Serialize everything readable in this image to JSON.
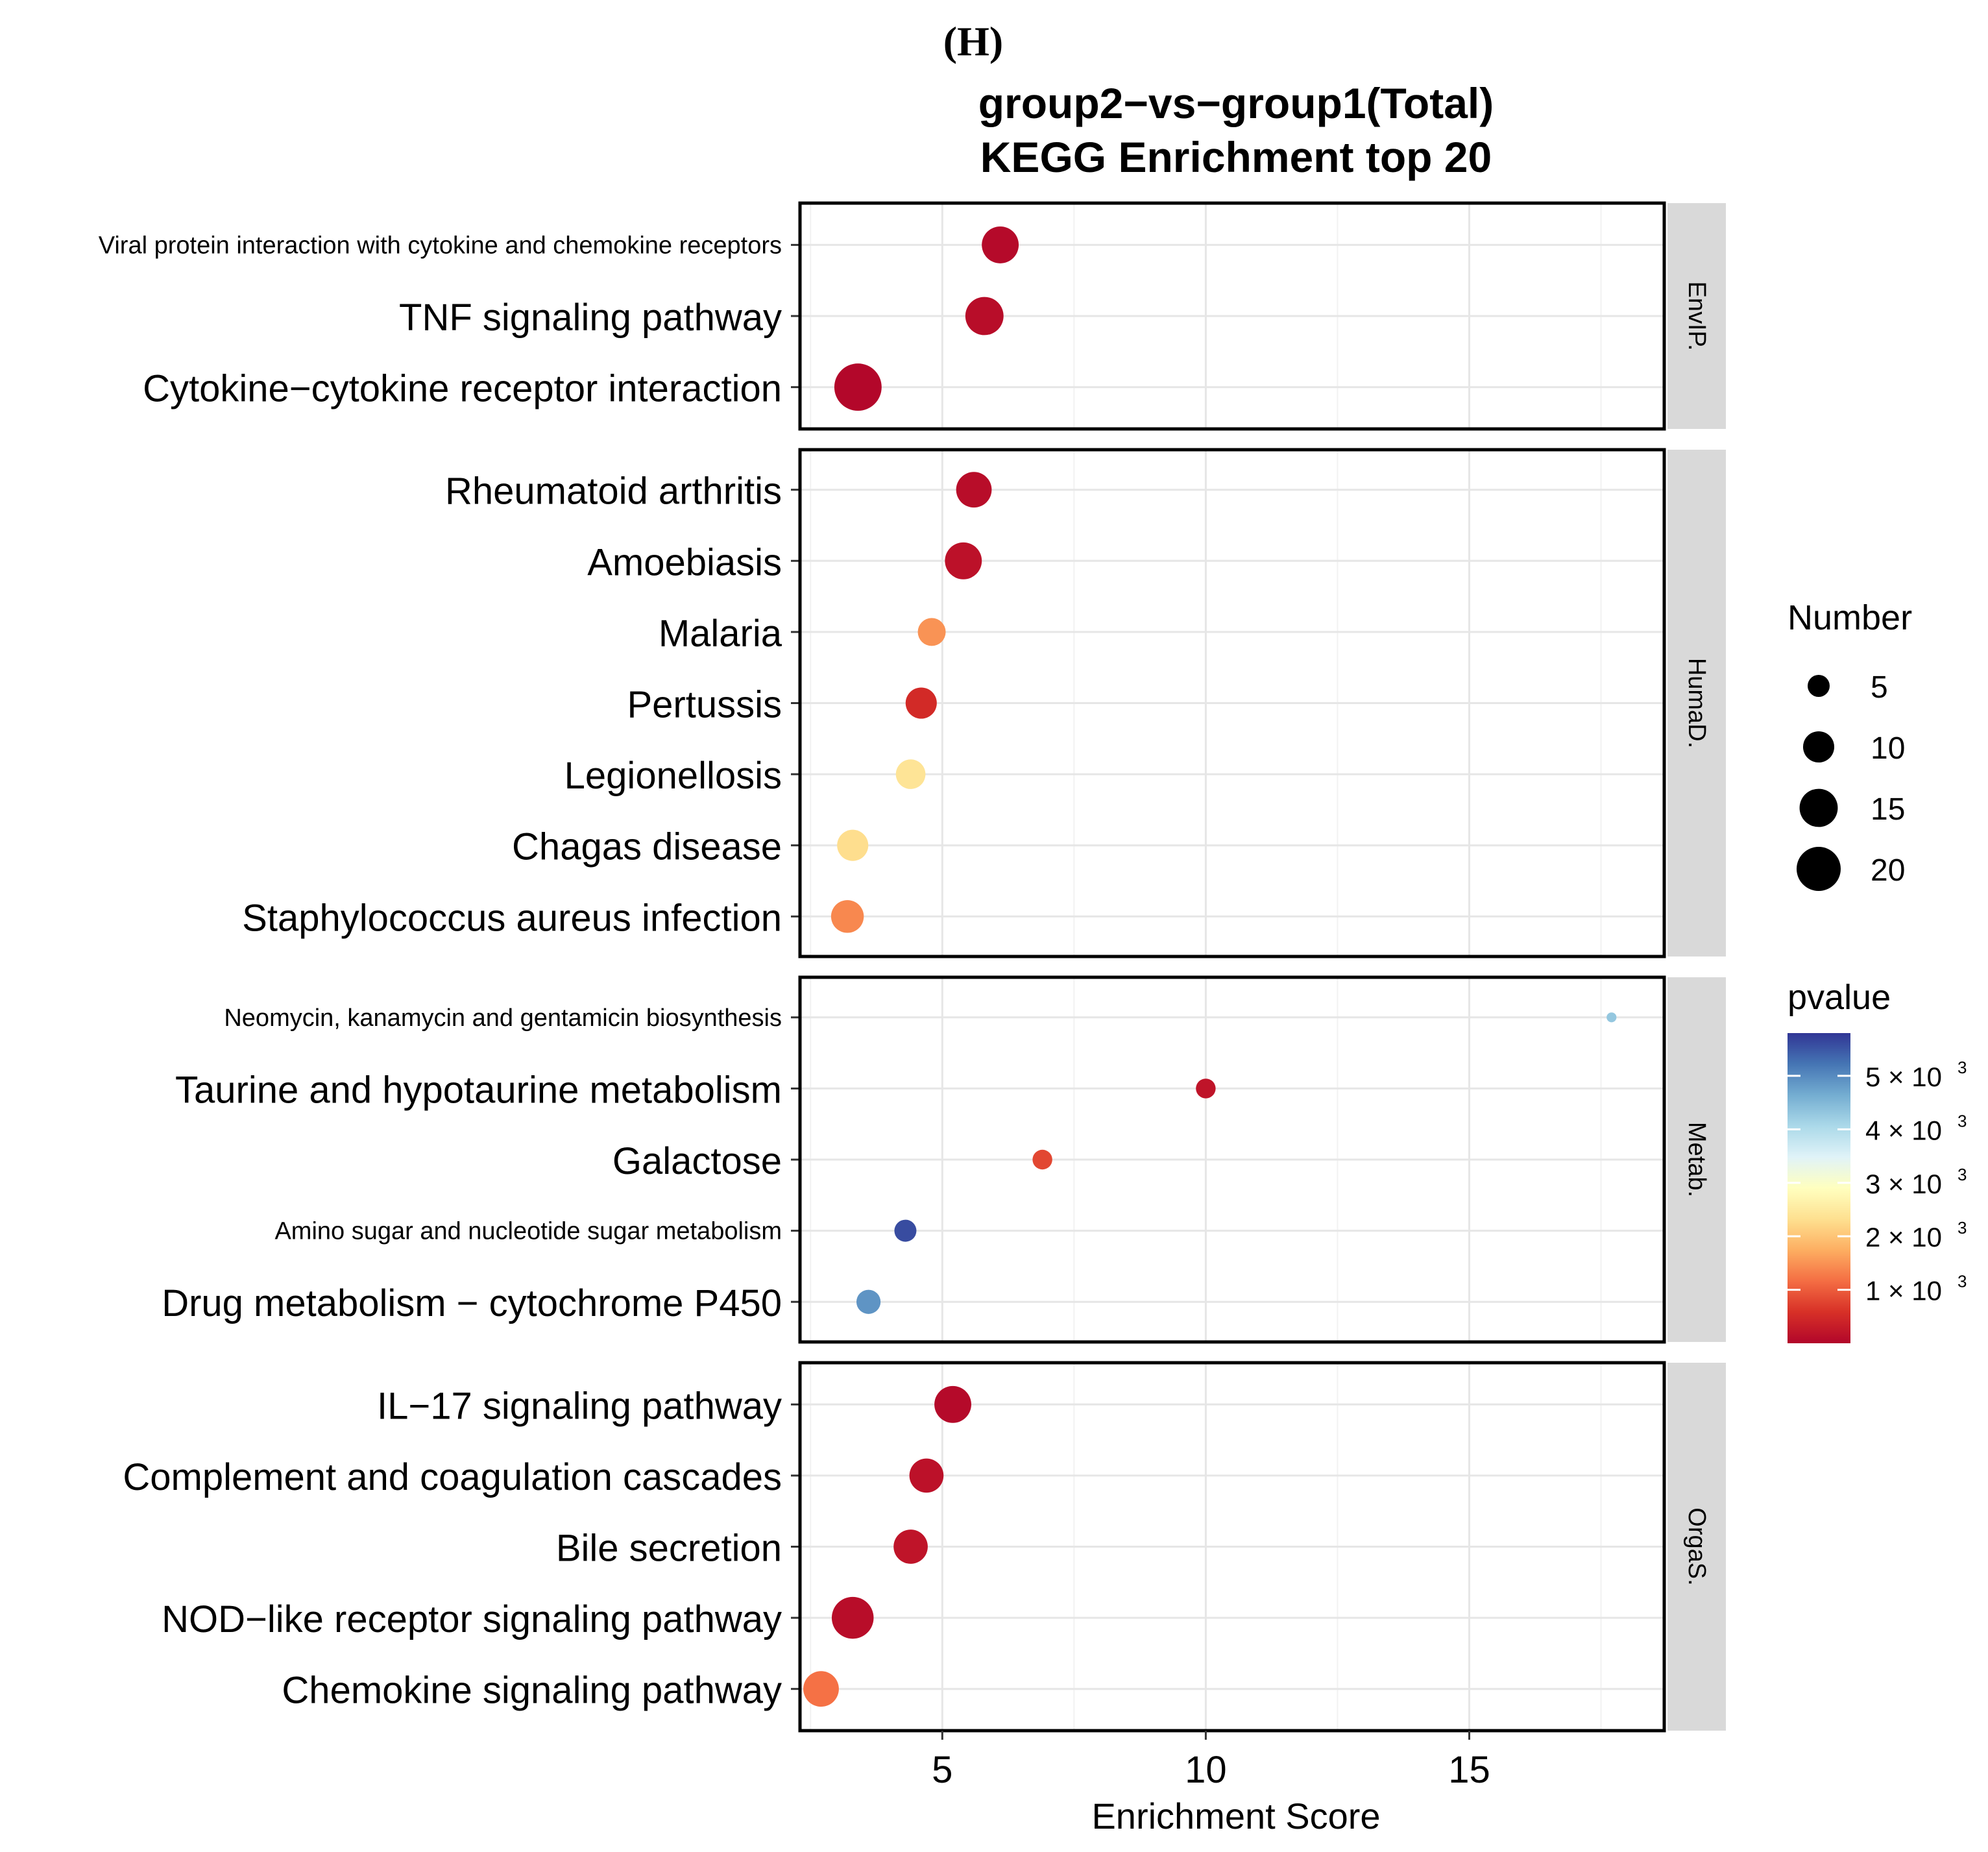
{
  "chart_data": {
    "type": "scatter",
    "panel_letter": "(H)",
    "title_line1": "group2−vs−group1(Total)",
    "title_line2": "KEGG Enrichment top 20",
    "xlabel": "Enrichment Score",
    "xlim": [
      2.3,
      18.7
    ],
    "x_ticks": [
      {
        "value": 5,
        "label": "5"
      },
      {
        "value": 10,
        "label": "10"
      },
      {
        "value": 15,
        "label": "15"
      }
    ],
    "minor_x_ticks": [
      2.5,
      7.5,
      12.5,
      17.5
    ],
    "grid": true,
    "facets": [
      {
        "name": "EnvIP.",
        "pathways": [
          {
            "label": "Viral protein interaction with cytokine and chemokine receptors",
            "label_size": "small",
            "score": 6.1,
            "number": 14,
            "pvalue_e3": 0.05
          },
          {
            "label": "TNF signaling pathway",
            "label_size": "large",
            "score": 5.8,
            "number": 15,
            "pvalue_e3": 0.1
          },
          {
            "label": "Cytokine−cytokine receptor interaction",
            "label_size": "large",
            "score": 3.4,
            "number": 23,
            "pvalue_e3": 0.02
          }
        ]
      },
      {
        "name": "HumaD.",
        "pathways": [
          {
            "label": "Rheumatoid arthritis",
            "label_size": "large",
            "score": 5.6,
            "number": 13,
            "pvalue_e3": 0.1
          },
          {
            "label": "Amoebiasis",
            "label_size": "large",
            "score": 5.4,
            "number": 14,
            "pvalue_e3": 0.15
          },
          {
            "label": "Malaria",
            "label_size": "large",
            "score": 4.8,
            "number": 8,
            "pvalue_e3": 1.5
          },
          {
            "label": "Pertussis",
            "label_size": "large",
            "score": 4.6,
            "number": 10,
            "pvalue_e3": 0.5
          },
          {
            "label": "Legionellosis",
            "label_size": "large",
            "score": 4.4,
            "number": 9,
            "pvalue_e3": 2.4
          },
          {
            "label": "Chagas disease",
            "label_size": "large",
            "score": 3.3,
            "number": 10,
            "pvalue_e3": 2.3
          },
          {
            "label": "Staphylococcus aureus infection",
            "label_size": "large",
            "score": 3.2,
            "number": 11,
            "pvalue_e3": 1.4
          }
        ]
      },
      {
        "name": "Metab.",
        "pathways": [
          {
            "label": "Neomycin, kanamycin and gentamicin biosynthesis",
            "label_size": "small",
            "score": 17.7,
            "number": 1,
            "pvalue_e3": 4.3
          },
          {
            "label": "Taurine and hypotaurine metabolism",
            "label_size": "large",
            "score": 10.0,
            "number": 4,
            "pvalue_e3": 0.2
          },
          {
            "label": "Galactose",
            "label_size": "large",
            "score": 6.9,
            "number": 4,
            "pvalue_e3": 0.8
          },
          {
            "label": "Amino sugar and nucleotide sugar metabolism",
            "label_size": "small",
            "score": 4.3,
            "number": 5,
            "pvalue_e3": 5.6
          },
          {
            "label": "Drug metabolism − cytochrome P450",
            "label_size": "large",
            "score": 3.6,
            "number": 6,
            "pvalue_e3": 4.9
          }
        ]
      },
      {
        "name": "OrgaS.",
        "pathways": [
          {
            "label": "IL−17 signaling pathway",
            "label_size": "large",
            "score": 5.2,
            "number": 14,
            "pvalue_e3": 0.05
          },
          {
            "label": "Complement and coagulation cascades",
            "label_size": "large",
            "score": 4.7,
            "number": 12,
            "pvalue_e3": 0.15
          },
          {
            "label": "Bile secretion",
            "label_size": "large",
            "score": 4.4,
            "number": 12,
            "pvalue_e3": 0.2
          },
          {
            "label": "NOD−like receptor signaling pathway",
            "label_size": "large",
            "score": 3.3,
            "number": 18,
            "pvalue_e3": 0.1
          },
          {
            "label": "Chemokine signaling pathway",
            "label_size": "large",
            "score": 2.7,
            "number": 13,
            "pvalue_e3": 1.2
          }
        ]
      }
    ],
    "size_legend": {
      "title": "Number",
      "entries": [
        {
          "value": 5,
          "label": "5"
        },
        {
          "value": 10,
          "label": "10"
        },
        {
          "value": 15,
          "label": "15"
        },
        {
          "value": 20,
          "label": "20"
        }
      ]
    },
    "color_legend": {
      "title": "pvalue",
      "min_e3": 0,
      "max_e3": 5.8,
      "ticks": [
        {
          "value_e3": 1,
          "label": "1 × 10",
          "exp": "3"
        },
        {
          "value_e3": 2,
          "label": "2 × 10",
          "exp": "3"
        },
        {
          "value_e3": 3,
          "label": "3 × 10",
          "exp": "3"
        },
        {
          "value_e3": 4,
          "label": "4 × 10",
          "exp": "3"
        },
        {
          "value_e3": 5,
          "label": "5 × 10",
          "exp": "3"
        }
      ],
      "colors_low_to_high": [
        "#b2062a",
        "#d73027",
        "#f46d43",
        "#fdae61",
        "#fee090",
        "#ffffbf",
        "#e0f3f8",
        "#abd9e9",
        "#74add1",
        "#4575b4",
        "#313695"
      ]
    }
  }
}
